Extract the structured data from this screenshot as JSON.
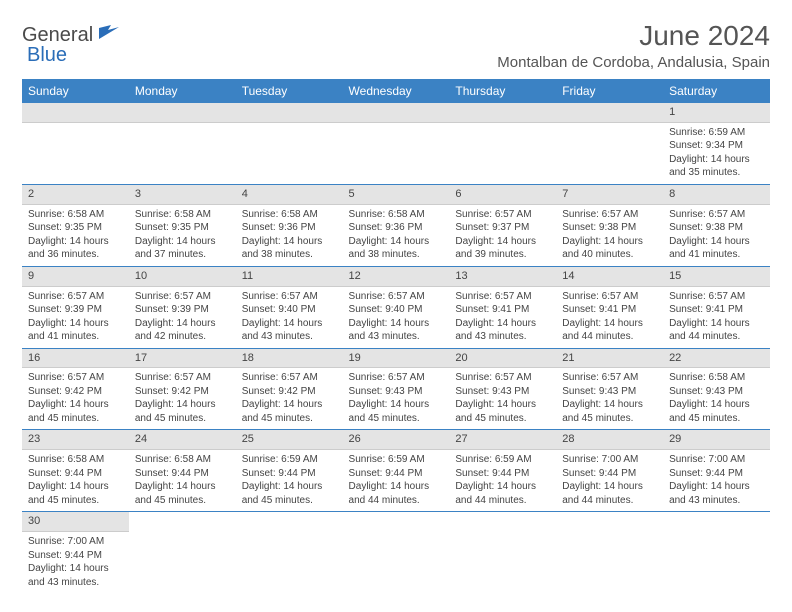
{
  "brand": {
    "part1": "General",
    "part2": "Blue"
  },
  "title": "June 2024",
  "location": "Montalban de Cordoba, Andalusia, Spain",
  "colors": {
    "header_bg": "#3b82c4",
    "header_text": "#ffffff",
    "daynum_bg": "#e4e4e4",
    "rule": "#3b82c4",
    "text": "#444444",
    "brand_accent": "#2a6db8"
  },
  "typography": {
    "title_fontsize": 28,
    "location_fontsize": 15,
    "th_fontsize": 12,
    "cell_fontsize": 10
  },
  "weekdays": [
    "Sunday",
    "Monday",
    "Tuesday",
    "Wednesday",
    "Thursday",
    "Friday",
    "Saturday"
  ],
  "weeks": [
    [
      null,
      null,
      null,
      null,
      null,
      null,
      {
        "n": "1",
        "sunrise": "Sunrise: 6:59 AM",
        "sunset": "Sunset: 9:34 PM",
        "day1": "Daylight: 14 hours",
        "day2": "and 35 minutes."
      }
    ],
    [
      {
        "n": "2",
        "sunrise": "Sunrise: 6:58 AM",
        "sunset": "Sunset: 9:35 PM",
        "day1": "Daylight: 14 hours",
        "day2": "and 36 minutes."
      },
      {
        "n": "3",
        "sunrise": "Sunrise: 6:58 AM",
        "sunset": "Sunset: 9:35 PM",
        "day1": "Daylight: 14 hours",
        "day2": "and 37 minutes."
      },
      {
        "n": "4",
        "sunrise": "Sunrise: 6:58 AM",
        "sunset": "Sunset: 9:36 PM",
        "day1": "Daylight: 14 hours",
        "day2": "and 38 minutes."
      },
      {
        "n": "5",
        "sunrise": "Sunrise: 6:58 AM",
        "sunset": "Sunset: 9:36 PM",
        "day1": "Daylight: 14 hours",
        "day2": "and 38 minutes."
      },
      {
        "n": "6",
        "sunrise": "Sunrise: 6:57 AM",
        "sunset": "Sunset: 9:37 PM",
        "day1": "Daylight: 14 hours",
        "day2": "and 39 minutes."
      },
      {
        "n": "7",
        "sunrise": "Sunrise: 6:57 AM",
        "sunset": "Sunset: 9:38 PM",
        "day1": "Daylight: 14 hours",
        "day2": "and 40 minutes."
      },
      {
        "n": "8",
        "sunrise": "Sunrise: 6:57 AM",
        "sunset": "Sunset: 9:38 PM",
        "day1": "Daylight: 14 hours",
        "day2": "and 41 minutes."
      }
    ],
    [
      {
        "n": "9",
        "sunrise": "Sunrise: 6:57 AM",
        "sunset": "Sunset: 9:39 PM",
        "day1": "Daylight: 14 hours",
        "day2": "and 41 minutes."
      },
      {
        "n": "10",
        "sunrise": "Sunrise: 6:57 AM",
        "sunset": "Sunset: 9:39 PM",
        "day1": "Daylight: 14 hours",
        "day2": "and 42 minutes."
      },
      {
        "n": "11",
        "sunrise": "Sunrise: 6:57 AM",
        "sunset": "Sunset: 9:40 PM",
        "day1": "Daylight: 14 hours",
        "day2": "and 43 minutes."
      },
      {
        "n": "12",
        "sunrise": "Sunrise: 6:57 AM",
        "sunset": "Sunset: 9:40 PM",
        "day1": "Daylight: 14 hours",
        "day2": "and 43 minutes."
      },
      {
        "n": "13",
        "sunrise": "Sunrise: 6:57 AM",
        "sunset": "Sunset: 9:41 PM",
        "day1": "Daylight: 14 hours",
        "day2": "and 43 minutes."
      },
      {
        "n": "14",
        "sunrise": "Sunrise: 6:57 AM",
        "sunset": "Sunset: 9:41 PM",
        "day1": "Daylight: 14 hours",
        "day2": "and 44 minutes."
      },
      {
        "n": "15",
        "sunrise": "Sunrise: 6:57 AM",
        "sunset": "Sunset: 9:41 PM",
        "day1": "Daylight: 14 hours",
        "day2": "and 44 minutes."
      }
    ],
    [
      {
        "n": "16",
        "sunrise": "Sunrise: 6:57 AM",
        "sunset": "Sunset: 9:42 PM",
        "day1": "Daylight: 14 hours",
        "day2": "and 45 minutes."
      },
      {
        "n": "17",
        "sunrise": "Sunrise: 6:57 AM",
        "sunset": "Sunset: 9:42 PM",
        "day1": "Daylight: 14 hours",
        "day2": "and 45 minutes."
      },
      {
        "n": "18",
        "sunrise": "Sunrise: 6:57 AM",
        "sunset": "Sunset: 9:42 PM",
        "day1": "Daylight: 14 hours",
        "day2": "and 45 minutes."
      },
      {
        "n": "19",
        "sunrise": "Sunrise: 6:57 AM",
        "sunset": "Sunset: 9:43 PM",
        "day1": "Daylight: 14 hours",
        "day2": "and 45 minutes."
      },
      {
        "n": "20",
        "sunrise": "Sunrise: 6:57 AM",
        "sunset": "Sunset: 9:43 PM",
        "day1": "Daylight: 14 hours",
        "day2": "and 45 minutes."
      },
      {
        "n": "21",
        "sunrise": "Sunrise: 6:57 AM",
        "sunset": "Sunset: 9:43 PM",
        "day1": "Daylight: 14 hours",
        "day2": "and 45 minutes."
      },
      {
        "n": "22",
        "sunrise": "Sunrise: 6:58 AM",
        "sunset": "Sunset: 9:43 PM",
        "day1": "Daylight: 14 hours",
        "day2": "and 45 minutes."
      }
    ],
    [
      {
        "n": "23",
        "sunrise": "Sunrise: 6:58 AM",
        "sunset": "Sunset: 9:44 PM",
        "day1": "Daylight: 14 hours",
        "day2": "and 45 minutes."
      },
      {
        "n": "24",
        "sunrise": "Sunrise: 6:58 AM",
        "sunset": "Sunset: 9:44 PM",
        "day1": "Daylight: 14 hours",
        "day2": "and 45 minutes."
      },
      {
        "n": "25",
        "sunrise": "Sunrise: 6:59 AM",
        "sunset": "Sunset: 9:44 PM",
        "day1": "Daylight: 14 hours",
        "day2": "and 45 minutes."
      },
      {
        "n": "26",
        "sunrise": "Sunrise: 6:59 AM",
        "sunset": "Sunset: 9:44 PM",
        "day1": "Daylight: 14 hours",
        "day2": "and 44 minutes."
      },
      {
        "n": "27",
        "sunrise": "Sunrise: 6:59 AM",
        "sunset": "Sunset: 9:44 PM",
        "day1": "Daylight: 14 hours",
        "day2": "and 44 minutes."
      },
      {
        "n": "28",
        "sunrise": "Sunrise: 7:00 AM",
        "sunset": "Sunset: 9:44 PM",
        "day1": "Daylight: 14 hours",
        "day2": "and 44 minutes."
      },
      {
        "n": "29",
        "sunrise": "Sunrise: 7:00 AM",
        "sunset": "Sunset: 9:44 PM",
        "day1": "Daylight: 14 hours",
        "day2": "and 43 minutes."
      }
    ],
    [
      {
        "n": "30",
        "sunrise": "Sunrise: 7:00 AM",
        "sunset": "Sunset: 9:44 PM",
        "day1": "Daylight: 14 hours",
        "day2": "and 43 minutes."
      },
      null,
      null,
      null,
      null,
      null,
      null
    ]
  ]
}
